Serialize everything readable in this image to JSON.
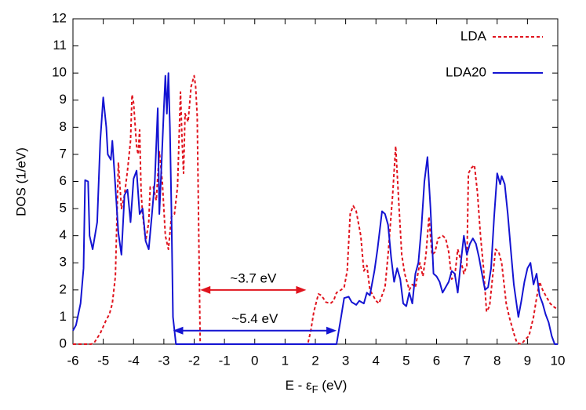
{
  "chart_data": {
    "type": "line",
    "xlabel": [
      "E - ε",
      "F",
      " (eV)"
    ],
    "ylabel": "DOS (1/eV)",
    "xlim": [
      -6,
      10
    ],
    "ylim": [
      0,
      12
    ],
    "xticks": [
      -6,
      -5,
      -4,
      -3,
      -2,
      -1,
      0,
      1,
      2,
      3,
      4,
      5,
      6,
      7,
      8,
      9,
      10
    ],
    "yticks": [
      0,
      1,
      2,
      3,
      4,
      5,
      6,
      7,
      8,
      9,
      10,
      11,
      12
    ],
    "legend": "top-right",
    "series": [
      {
        "name": "LDA",
        "color": "#e0141e",
        "dashed": true,
        "x": [
          -6,
          -5.4,
          -5.3,
          -5.1,
          -4.9,
          -4.8,
          -4.7,
          -4.6,
          -4.5,
          -4.4,
          -4.3,
          -4.2,
          -4.1,
          -4.05,
          -4.0,
          -3.9,
          -3.85,
          -3.8,
          -3.75,
          -3.7,
          -3.6,
          -3.5,
          -3.45,
          -3.35,
          -3.25,
          -3.15,
          -3.05,
          -2.95,
          -2.85,
          -2.75,
          -2.65,
          -2.55,
          -2.45,
          -2.4,
          -2.35,
          -2.3,
          -2.2,
          -2.1,
          -2.0,
          -1.95,
          -1.9,
          -1.8,
          1.75,
          1.85,
          1.95,
          2.1,
          2.2,
          2.35,
          2.5,
          2.6,
          2.7,
          2.85,
          2.95,
          3.05,
          3.15,
          3.25,
          3.35,
          3.5,
          3.6,
          3.7,
          3.8,
          3.9,
          4.0,
          4.1,
          4.2,
          4.3,
          4.4,
          4.55,
          4.65,
          4.75,
          4.85,
          4.95,
          5.1,
          5.2,
          5.3,
          5.45,
          5.55,
          5.65,
          5.75,
          5.85,
          5.95,
          6.05,
          6.2,
          6.3,
          6.4,
          6.5,
          6.6,
          6.7,
          6.8,
          6.9,
          7.0,
          7.05,
          7.15,
          7.25,
          7.35,
          7.45,
          7.55,
          7.65,
          7.75,
          7.85,
          7.95,
          8.05,
          8.15,
          8.3,
          8.4,
          8.55,
          8.65,
          8.8,
          8.95,
          9.05,
          9.2,
          9.3,
          9.4,
          9.5,
          9.6,
          9.75,
          9.9,
          10
        ],
        "values": [
          0,
          0,
          0.05,
          0.4,
          0.9,
          1.1,
          1.5,
          2.5,
          6.7,
          5.0,
          5.5,
          6.4,
          7.5,
          9.2,
          8.9,
          7.3,
          7.0,
          7.9,
          5.6,
          4.8,
          3.8,
          4.5,
          5.8,
          5.8,
          5.3,
          7.1,
          6.0,
          4.0,
          3.5,
          4.7,
          4.8,
          5.8,
          9.3,
          7.5,
          6.3,
          8.5,
          8.2,
          9.5,
          9.9,
          9.5,
          8.4,
          0,
          0,
          0.5,
          1.2,
          1.85,
          1.8,
          1.55,
          1.5,
          1.6,
          1.9,
          2.0,
          2.1,
          2.7,
          4.8,
          5.1,
          4.9,
          4.0,
          2.7,
          2.9,
          2.0,
          1.8,
          1.6,
          1.5,
          1.8,
          2.1,
          3.3,
          5.5,
          7.3,
          5.3,
          3.3,
          2.6,
          2.0,
          2.2,
          2.1,
          3.0,
          2.5,
          3.3,
          4.7,
          3.3,
          3.4,
          3.9,
          4.0,
          3.9,
          3.4,
          2.4,
          2.5,
          3.5,
          3.1,
          2.6,
          2.9,
          6.3,
          6.5,
          6.6,
          5.6,
          4.0,
          2.8,
          1.2,
          1.4,
          2.5,
          3.5,
          3.4,
          3.0,
          1.5,
          1.0,
          0.4,
          0.05,
          0,
          0.2,
          0.3,
          1.0,
          1.7,
          2.3,
          2.0,
          1.8,
          1.5,
          1.35,
          1.3
        ]
      },
      {
        "name": "LDA20",
        "color": "#1414d2",
        "dashed": false,
        "x": [
          -6.0,
          -5.9,
          -5.75,
          -5.65,
          -5.6,
          -5.5,
          -5.45,
          -5.35,
          -5.2,
          -5.1,
          -5.0,
          -4.9,
          -4.85,
          -4.75,
          -4.7,
          -4.6,
          -4.5,
          -4.4,
          -4.3,
          -4.2,
          -4.1,
          -4.0,
          -3.9,
          -3.8,
          -3.7,
          -3.6,
          -3.5,
          -3.4,
          -3.3,
          -3.2,
          -3.15,
          -3.1,
          -3.0,
          -2.95,
          -2.9,
          -2.85,
          -2.8,
          -2.75,
          -2.7,
          -2.6,
          2.7,
          2.85,
          2.95,
          3.1,
          3.2,
          3.35,
          3.45,
          3.6,
          3.7,
          3.8,
          3.95,
          4.05,
          4.2,
          4.3,
          4.4,
          4.5,
          4.6,
          4.7,
          4.8,
          4.9,
          5.0,
          5.1,
          5.2,
          5.3,
          5.4,
          5.5,
          5.6,
          5.7,
          5.8,
          5.9,
          6.0,
          6.1,
          6.2,
          6.3,
          6.4,
          6.5,
          6.6,
          6.7,
          6.8,
          6.9,
          7.0,
          7.1,
          7.2,
          7.3,
          7.4,
          7.5,
          7.6,
          7.7,
          7.8,
          7.9,
          8.0,
          8.1,
          8.15,
          8.25,
          8.35,
          8.45,
          8.55,
          8.7,
          8.8,
          8.9,
          9.0,
          9.1,
          9.2,
          9.3,
          9.4,
          9.5,
          9.6,
          9.7,
          9.8,
          9.9,
          10
        ],
        "values": [
          0.5,
          0.7,
          1.5,
          2.8,
          6.05,
          6.0,
          4.0,
          3.5,
          4.5,
          7.5,
          9.1,
          8.0,
          7.0,
          6.8,
          7.5,
          5.8,
          4.1,
          3.3,
          5.5,
          5.7,
          4.5,
          6.1,
          6.4,
          4.8,
          5.0,
          3.8,
          3.5,
          4.7,
          6.0,
          8.7,
          4.8,
          6.0,
          8.7,
          9.9,
          8.5,
          10.0,
          8.0,
          5.0,
          1.0,
          0,
          0,
          1.0,
          1.7,
          1.75,
          1.55,
          1.45,
          1.6,
          1.5,
          1.9,
          1.8,
          2.7,
          3.5,
          4.9,
          4.8,
          4.4,
          3.2,
          2.3,
          2.8,
          2.4,
          1.5,
          1.4,
          1.9,
          1.5,
          2.6,
          3.0,
          4.3,
          6.0,
          6.9,
          5.0,
          2.6,
          2.5,
          2.3,
          1.9,
          2.1,
          2.3,
          2.7,
          2.6,
          1.9,
          3.0,
          4.0,
          3.3,
          3.7,
          3.9,
          3.7,
          3.2,
          2.6,
          2.0,
          2.1,
          2.8,
          4.7,
          6.3,
          5.9,
          6.2,
          5.9,
          4.8,
          3.5,
          2.2,
          1.0,
          1.6,
          2.3,
          2.8,
          3.0,
          2.2,
          2.6,
          1.8,
          1.5,
          1.1,
          0.8,
          0.3,
          0,
          0
        ]
      }
    ],
    "annotations": [
      {
        "text": "~3.7 eV",
        "color": "#e0141e",
        "x": [
          -1.8,
          1.7
        ],
        "y": 2
      },
      {
        "text": "~5.4 eV",
        "color": "#1414d2",
        "x": [
          -2.7,
          2.7
        ],
        "y": 0.5
      }
    ]
  }
}
